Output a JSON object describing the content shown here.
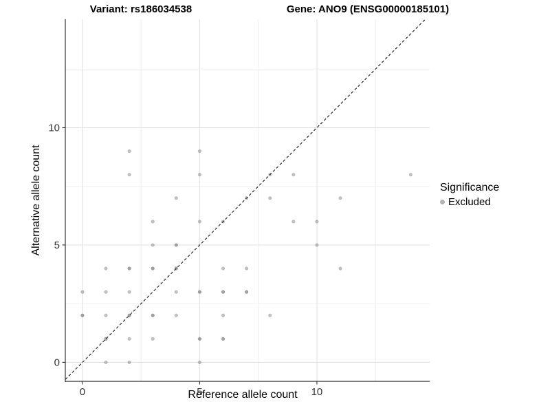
{
  "chart_data": {
    "type": "scatter",
    "title_left": "Variant: rs186034538",
    "title_right": "Gene: ANO9 (ENSG00000185101)",
    "xlabel": "Reference allele count",
    "ylabel": "Alternative allele count",
    "xlim": [
      -0.73,
      14.81
    ],
    "ylim": [
      -0.81,
      14.62
    ],
    "x_major_ticks": [
      0,
      5,
      10
    ],
    "y_major_ticks": [
      0,
      5,
      10
    ],
    "x_minor_ticks": [
      2.5,
      7.5,
      12.5
    ],
    "y_minor_ticks": [
      2.5,
      7.5,
      12.5
    ],
    "grid": true,
    "identity_line": {
      "style": "dashed",
      "slope": 1,
      "intercept": 0
    },
    "points": [
      {
        "x": 1,
        "y": 0,
        "n": 1
      },
      {
        "x": 2,
        "y": 0,
        "n": 1
      },
      {
        "x": 5,
        "y": 0,
        "n": 1
      },
      {
        "x": 1,
        "y": 1,
        "n": 2
      },
      {
        "x": 2,
        "y": 1,
        "n": 1
      },
      {
        "x": 3,
        "y": 1,
        "n": 1
      },
      {
        "x": 5,
        "y": 1,
        "n": 2
      },
      {
        "x": 6,
        "y": 1,
        "n": 2
      },
      {
        "x": 0,
        "y": 2,
        "n": 2
      },
      {
        "x": 1,
        "y": 2,
        "n": 1
      },
      {
        "x": 2,
        "y": 2,
        "n": 2
      },
      {
        "x": 3,
        "y": 2,
        "n": 2
      },
      {
        "x": 4,
        "y": 2,
        "n": 1
      },
      {
        "x": 6,
        "y": 2,
        "n": 1
      },
      {
        "x": 8,
        "y": 2,
        "n": 1
      },
      {
        "x": 0,
        "y": 3,
        "n": 1
      },
      {
        "x": 1,
        "y": 3,
        "n": 1
      },
      {
        "x": 2,
        "y": 3,
        "n": 1
      },
      {
        "x": 4,
        "y": 3,
        "n": 1
      },
      {
        "x": 5,
        "y": 3,
        "n": 2
      },
      {
        "x": 6,
        "y": 3,
        "n": 2
      },
      {
        "x": 7,
        "y": 3,
        "n": 2
      },
      {
        "x": 1,
        "y": 4,
        "n": 1
      },
      {
        "x": 2,
        "y": 4,
        "n": 2
      },
      {
        "x": 3,
        "y": 4,
        "n": 2
      },
      {
        "x": 4,
        "y": 4,
        "n": 2
      },
      {
        "x": 6,
        "y": 4,
        "n": 1
      },
      {
        "x": 7,
        "y": 4,
        "n": 1
      },
      {
        "x": 11,
        "y": 4,
        "n": 1
      },
      {
        "x": 3,
        "y": 5,
        "n": 1
      },
      {
        "x": 4,
        "y": 5,
        "n": 2
      },
      {
        "x": 10,
        "y": 5,
        "n": 1
      },
      {
        "x": 3,
        "y": 6,
        "n": 1
      },
      {
        "x": 5,
        "y": 6,
        "n": 1
      },
      {
        "x": 6,
        "y": 6,
        "n": 1
      },
      {
        "x": 9,
        "y": 6,
        "n": 1
      },
      {
        "x": 10,
        "y": 6,
        "n": 1
      },
      {
        "x": 4,
        "y": 7,
        "n": 1
      },
      {
        "x": 7,
        "y": 7,
        "n": 1
      },
      {
        "x": 8,
        "y": 7,
        "n": 1
      },
      {
        "x": 11,
        "y": 7,
        "n": 1
      },
      {
        "x": 2,
        "y": 8,
        "n": 1
      },
      {
        "x": 5,
        "y": 8,
        "n": 1
      },
      {
        "x": 8,
        "y": 8,
        "n": 1
      },
      {
        "x": 9,
        "y": 8,
        "n": 1
      },
      {
        "x": 14,
        "y": 8,
        "n": 1
      },
      {
        "x": 2,
        "y": 9,
        "n": 1
      },
      {
        "x": 5,
        "y": 9,
        "n": 1
      }
    ],
    "legend": {
      "title": "Significance",
      "items": [
        {
          "label": "Excluded",
          "color": "#b3b3b3"
        }
      ],
      "position": "right"
    },
    "colors": {
      "point": "#7f7f7f",
      "grid_major": "#e4e4e4",
      "grid_minor": "#f0f0f0",
      "axis": "#333333",
      "tick_label": "#333333",
      "diagonal": "#1a1a1a",
      "background": "#ffffff"
    }
  }
}
